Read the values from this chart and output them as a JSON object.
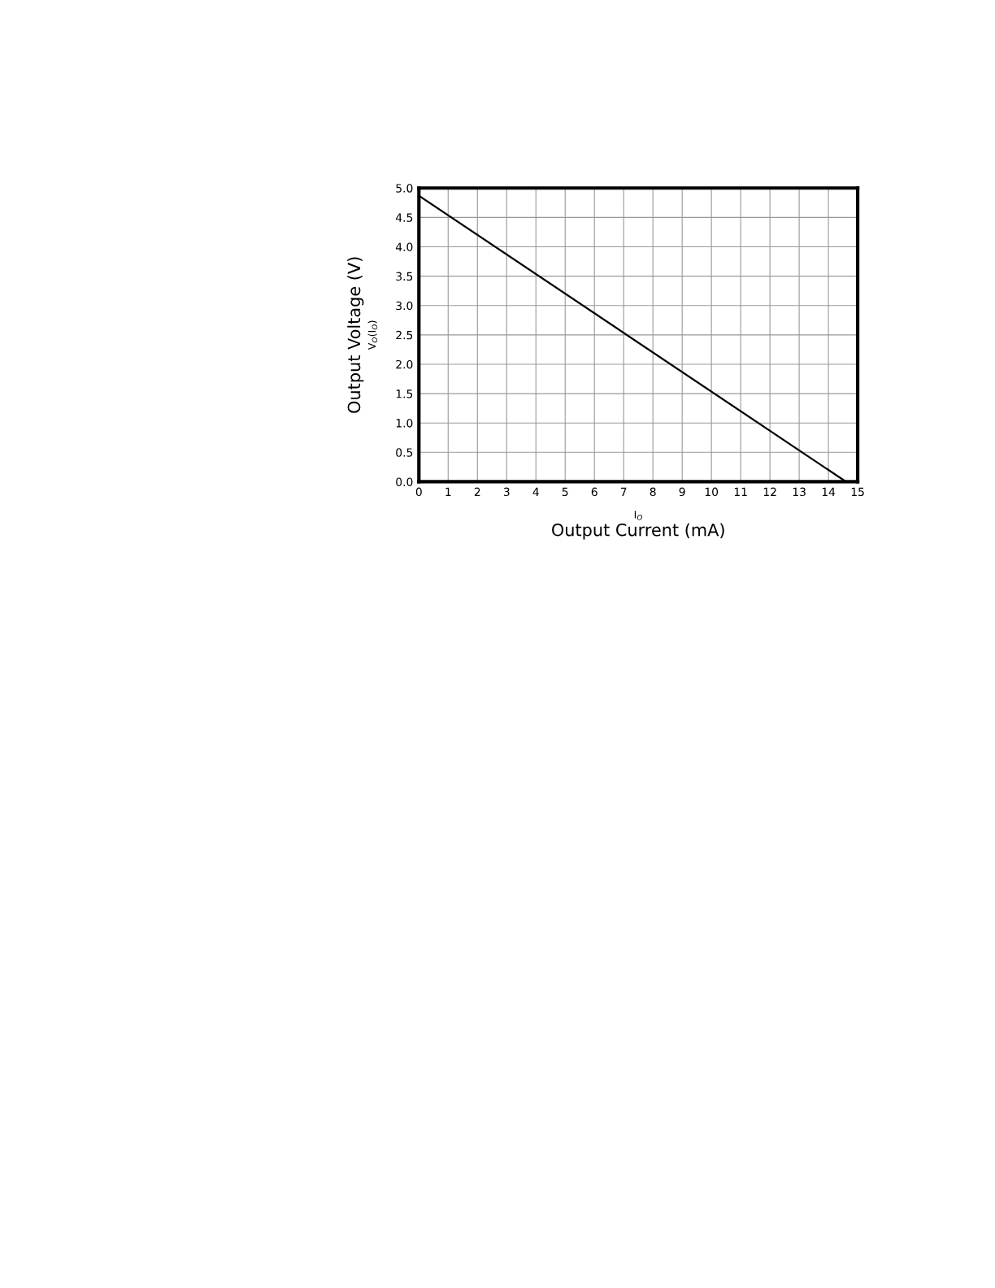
{
  "chart_data": {
    "type": "line",
    "ylabel": "Output Voltage (V)",
    "xlabel": "Output Current (mA)",
    "annotations": [
      "V$_{O}$(I$_{O}$)",
      "I$_{O}$"
    ],
    "series": [
      {
        "color": "#000000",
        "x": [
          0,
          14.6
        ],
        "values": [
          4.87,
          0
        ]
      }
    ],
    "xlim": [
      0,
      15
    ],
    "ylim": [
      0,
      5
    ],
    "xticks": [
      0,
      1,
      2,
      3,
      4,
      5,
      6,
      7,
      8,
      9,
      10,
      11,
      12,
      13,
      14,
      15
    ],
    "yticks": [
      {
        "value": 0,
        "label": "0.0"
      },
      {
        "value": 0.5,
        "label": "0.5"
      },
      {
        "value": 1,
        "label": "1.0"
      },
      {
        "value": 1.5,
        "label": "1.5"
      },
      {
        "value": 2,
        "label": "2.0"
      },
      {
        "value": 2.5,
        "label": "2.5"
      },
      {
        "value": 3,
        "label": "3.0"
      },
      {
        "value": 3.5,
        "label": "3.5"
      },
      {
        "value": 4,
        "label": "4.0"
      },
      {
        "value": 4.5,
        "label": "4.5"
      },
      {
        "value": 5,
        "label": "5.0"
      }
    ],
    "grid": true,
    "legend": false,
    "marker": "none",
    "line_style": "solid"
  }
}
